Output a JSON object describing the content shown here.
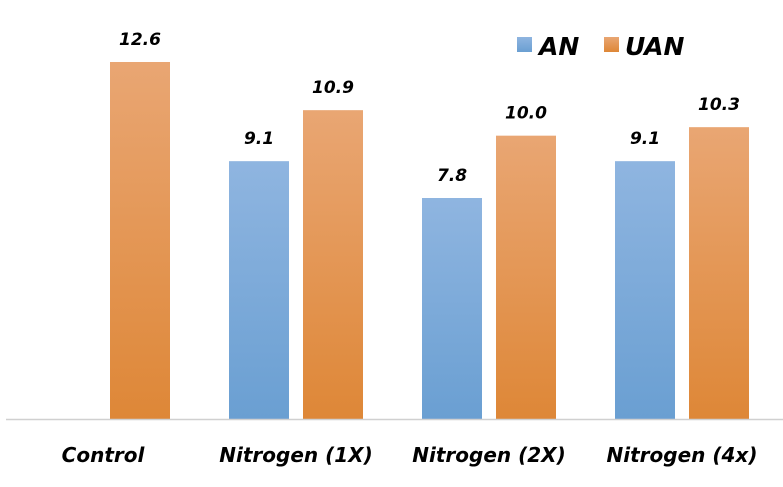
{
  "chart_data": {
    "type": "bar",
    "title": "",
    "xlabel": "",
    "ylabel": "",
    "categories": [
      "Control",
      "Nitrogen (1X)",
      "Nitrogen (2X)",
      "Nitrogen (4x)"
    ],
    "series": [
      {
        "name": "AN",
        "values": [
          null,
          9.1,
          7.8,
          9.1
        ],
        "color": "#6a9fd2",
        "color_light": "#8fb5e0"
      },
      {
        "name": "UAN",
        "values": [
          12.6,
          10.9,
          10.0,
          10.3
        ],
        "color": "#de8737",
        "color_light": "#e9a673"
      }
    ],
    "value_labels": [
      [
        "",
        "9.1",
        "7.8",
        "9.1"
      ],
      [
        "12.6",
        "10.9",
        "10.0",
        "10.3"
      ]
    ],
    "ylim": [
      0,
      12.6
    ],
    "grid": false,
    "legend": "top-right"
  }
}
